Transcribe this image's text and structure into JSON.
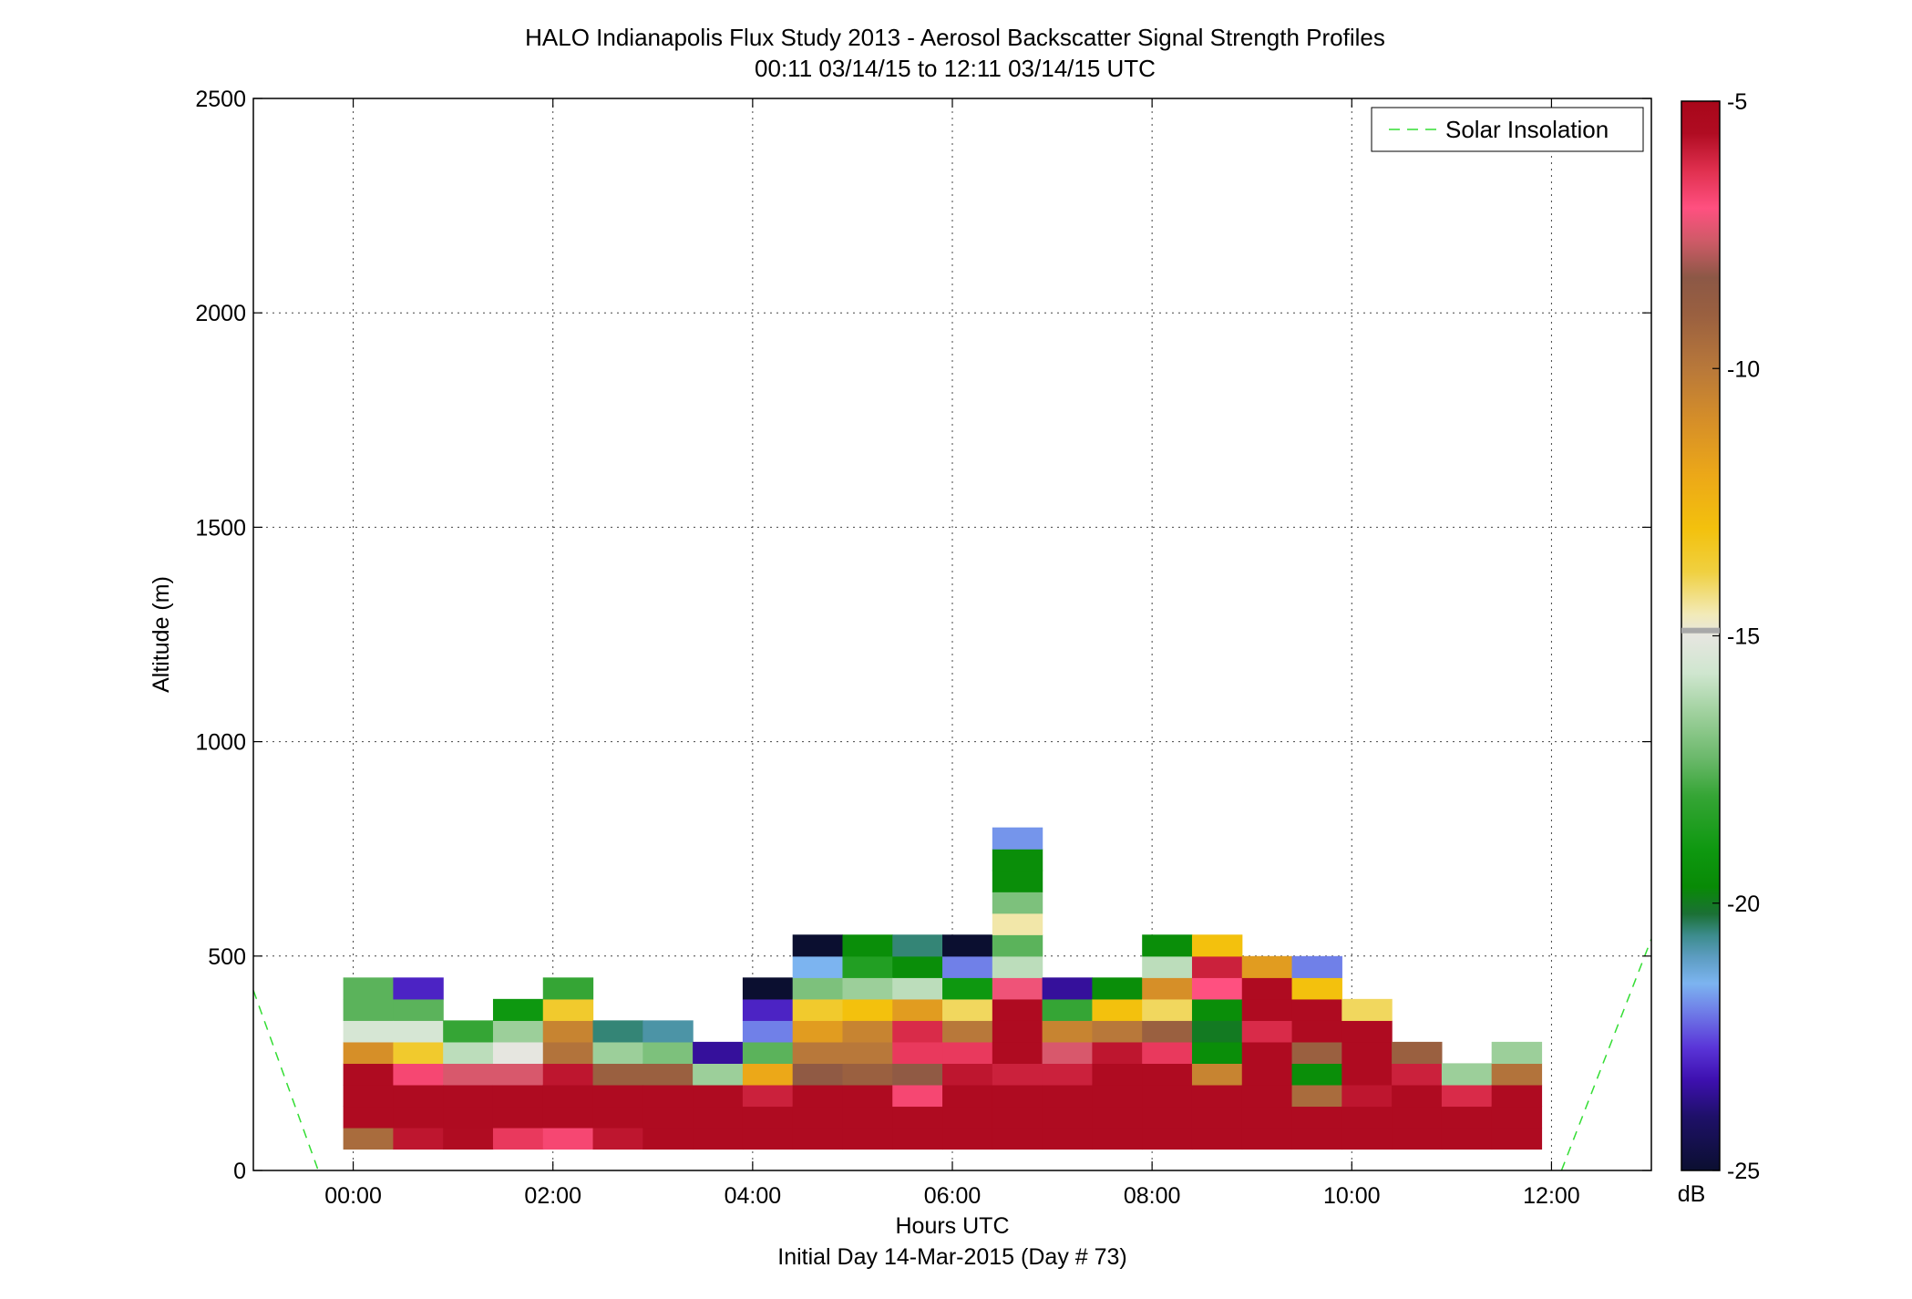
{
  "chart_data": {
    "type": "heatmap",
    "title": "HALO Indianapolis Flux Study 2013 - Aerosol Backscatter Signal Strength Profiles",
    "subtitle": "00:11 03/14/15 to 12:11 03/14/15  UTC",
    "xlabel": "Hours UTC",
    "xlabel2": "Initial Day 14-Mar-2015 (Day # 73)",
    "ylabel": "Altitude (m)",
    "xlim": [
      -1.0,
      13.0
    ],
    "ylim": [
      0,
      2500
    ],
    "x_ticks": [
      0,
      2,
      4,
      6,
      8,
      10,
      12
    ],
    "x_tick_labels": [
      "00:00",
      "02:00",
      "04:00",
      "06:00",
      "08:00",
      "10:00",
      "12:00"
    ],
    "y_ticks": [
      0,
      500,
      1000,
      1500,
      2000,
      2500
    ],
    "y_tick_labels": [
      "0",
      "500",
      "1000",
      "1500",
      "2000",
      "2500"
    ],
    "grid": true,
    "legend": {
      "entries": [
        "Solar Insolation"
      ],
      "position": "top-right"
    },
    "colorbar": {
      "label": "dB",
      "range": [
        -25,
        -5
      ],
      "ticks": [
        -5,
        -10,
        -15,
        -20,
        -25
      ],
      "tick_labels": [
        "-5",
        "-10",
        "-15",
        "-20",
        "-25"
      ]
    },
    "time_bin_hours": 0.5,
    "altitude_bin_m": 50,
    "first_bin_altitude_m": 50,
    "columns": [
      {
        "t": 0.15,
        "db": [
          -9.5,
          -5.5,
          -5.5,
          -5.5,
          -11,
          -15.5,
          -17.5,
          -17.5
        ]
      },
      {
        "t": 0.65,
        "db": [
          -5.8,
          -5.5,
          -5.5,
          -6.8,
          -13.5,
          -15.5,
          -17.5,
          -23
        ]
      },
      {
        "t": 1.15,
        "db": [
          -5.6,
          -5.5,
          -5.5,
          -7.5,
          -16,
          -18
        ]
      },
      {
        "t": 1.65,
        "db": [
          -6.5,
          -5.5,
          -5.5,
          -7.5,
          -15,
          -16.5,
          -19
        ]
      },
      {
        "t": 2.15,
        "db": [
          -6.8,
          -5.5,
          -5.5,
          -5.8,
          -9.8,
          -10.5,
          -13.5,
          -18
        ]
      },
      {
        "t": 2.65,
        "db": [
          -5.8,
          -5.5,
          -5.5,
          -9,
          -16.5,
          -20.5
        ]
      },
      {
        "t": 3.15,
        "db": [
          -5.5,
          -5.5,
          -5.5,
          -9,
          -17,
          -20.8
        ]
      },
      {
        "t": 3.65,
        "db": [
          -5.5,
          -5.5,
          -5.5,
          -16.5,
          -23.5
        ]
      },
      {
        "t": 4.15,
        "db": [
          -5.5,
          -5.5,
          -6,
          -12,
          -17.5,
          -22,
          -23,
          -25
        ]
      },
      {
        "t": 4.65,
        "db": [
          -5.5,
          -5.5,
          -5.5,
          -8.5,
          -10,
          -11.5,
          -13.5,
          -17,
          -21.5,
          -25
        ]
      },
      {
        "t": 5.15,
        "db": [
          -5.5,
          -5.5,
          -5.5,
          -9,
          -10,
          -10.5,
          -13,
          -16.5,
          -18.5,
          -19.5
        ]
      },
      {
        "t": 5.65,
        "db": [
          -5.5,
          -5.5,
          -6.8,
          -8.5,
          -6.5,
          -6.2,
          -11.5,
          -16,
          -19.5,
          -20.5
        ]
      },
      {
        "t": 6.15,
        "db": [
          -5.5,
          -5.5,
          -5.5,
          -5.8,
          -6.5,
          -10,
          -14,
          -19,
          -22,
          -25
        ]
      },
      {
        "t": 6.65,
        "db": [
          -5.5,
          -5.5,
          -5.5,
          -6,
          -5.5,
          -5.5,
          -5.5,
          -7.2,
          -16,
          -17.5,
          -14.5,
          -17,
          -19.5,
          -19.5,
          -21.8
        ]
      },
      {
        "t": 7.15,
        "db": [
          -5.5,
          -5.5,
          -5.5,
          -6,
          -7.5,
          -10.5,
          -18,
          -23.5
        ]
      },
      {
        "t": 7.65,
        "db": [
          -5.5,
          -5.5,
          -5.5,
          -5.5,
          -5.8,
          -10,
          -13,
          -19.5
        ]
      },
      {
        "t": 8.15,
        "db": [
          -5.5,
          -5.5,
          -5.5,
          -5.5,
          -6.5,
          -9,
          -14,
          -11,
          -16,
          -19.5
        ]
      },
      {
        "t": 8.65,
        "db": [
          -5.5,
          -5.5,
          -5.5,
          -10.5,
          -19.5,
          -20,
          -19.5,
          -7,
          -6,
          -13
        ]
      },
      {
        "t": 9.15,
        "db": [
          -5.5,
          -5.5,
          -5.5,
          -5.5,
          -5.5,
          -6.2,
          -5.5,
          -5.5,
          -11.5
        ]
      },
      {
        "t": 9.65,
        "db": [
          -5.5,
          -5.5,
          -9.5,
          -19.5,
          -9,
          -5.5,
          -5.5,
          -13,
          -22
        ]
      },
      {
        "t": 10.15,
        "db": [
          -5.5,
          -5.5,
          -5.8,
          -5.5,
          -5.5,
          -5.5,
          -14
        ]
      },
      {
        "t": 10.65,
        "db": [
          -5.5,
          -5.5,
          -5.5,
          -6,
          -9
        ]
      },
      {
        "t": 11.15,
        "db": [
          -5.5,
          -5.5,
          -6.2,
          -16.5
        ]
      },
      {
        "t": 11.65,
        "db": [
          -5.5,
          -5.5,
          -5.5,
          -9.8,
          -16.5
        ]
      }
    ],
    "solar_insolation": {
      "name": "Solar Insolation",
      "style": "dashed",
      "color": "#33dd33",
      "segments": [
        [
          [
            -1.0,
            420
          ],
          [
            -0.35,
            0
          ]
        ],
        [
          [
            12.1,
            0
          ],
          [
            13.0,
            540
          ]
        ]
      ]
    }
  }
}
